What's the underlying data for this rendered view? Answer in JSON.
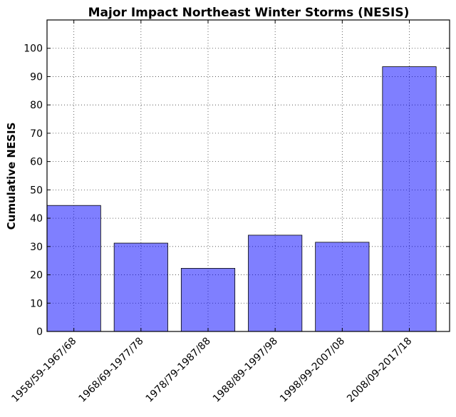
{
  "chart_data": {
    "type": "bar",
    "title": "Major Impact Northeast Winter Storms (NESIS)",
    "xlabel": "",
    "ylabel": "Cumulative NESIS",
    "categories": [
      "1958/59-1967/68",
      "1968/69-1977/78",
      "1978/79-1987/88",
      "1988/89-1997/98",
      "1998/99-2007/08",
      "2008/09-2017/18"
    ],
    "values": [
      44.5,
      31.2,
      22.3,
      34.0,
      31.5,
      93.5
    ],
    "ylim": [
      0,
      110
    ],
    "yticks": [
      0,
      10,
      20,
      30,
      40,
      50,
      60,
      70,
      80,
      90,
      100
    ],
    "bar_color": "#0000ff",
    "grid": true
  }
}
